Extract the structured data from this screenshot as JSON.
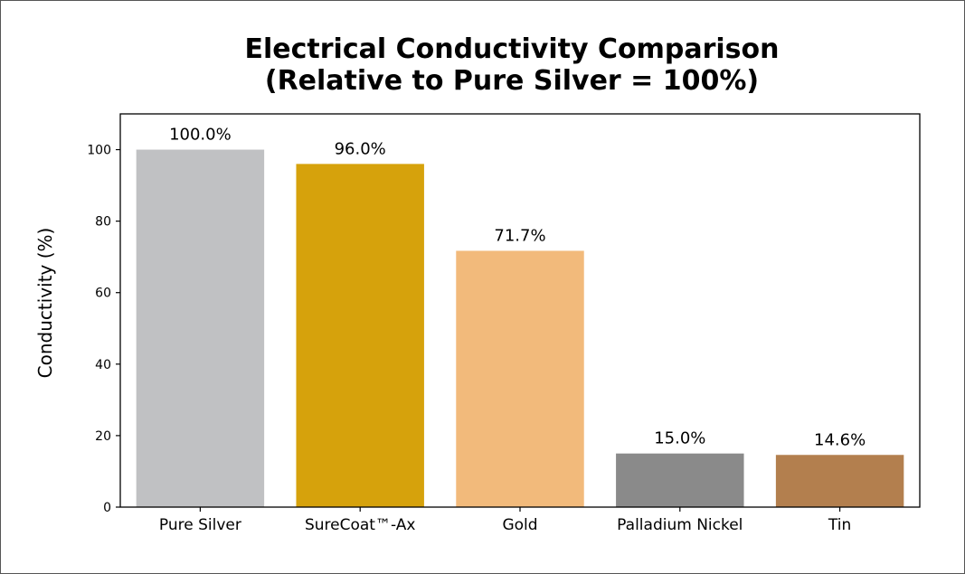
{
  "chart_data": {
    "type": "bar",
    "title": [
      "Electrical Conductivity Comparison",
      "(Relative to Pure Silver = 100%)"
    ],
    "xlabel": "",
    "ylabel": "Conductivity (%)",
    "ylim": [
      0,
      110
    ],
    "yticks": [
      0,
      20,
      40,
      60,
      80,
      100
    ],
    "categories": [
      "Pure Silver",
      "SureCoat™-Ax",
      "Gold",
      "Palladium Nickel",
      "Tin"
    ],
    "values": [
      100.0,
      96.0,
      71.7,
      15.0,
      14.6
    ],
    "value_labels": [
      "100.0%",
      "96.0%",
      "71.7%",
      "15.0%",
      "14.6%"
    ],
    "colors": [
      "#c0c1c3",
      "#d6a20c",
      "#f2ba7b",
      "#8a8a8a",
      "#b37f4e"
    ],
    "grid": false,
    "legend": false
  }
}
